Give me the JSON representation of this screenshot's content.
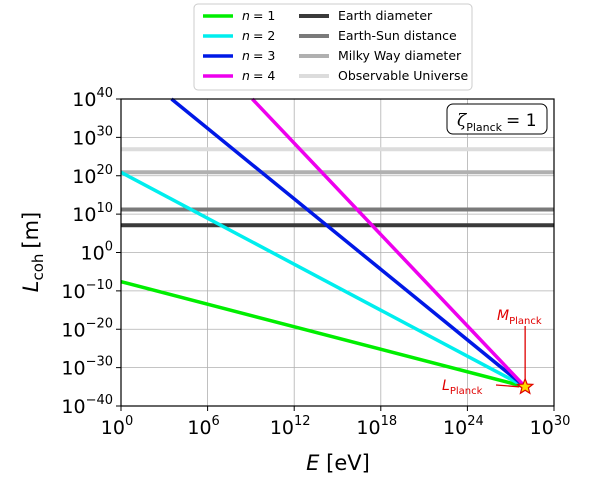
{
  "chart_data": {
    "type": "line",
    "xlabel": "E [eV]",
    "xlabel_symbol": "E",
    "xlabel_unit": "[eV]",
    "ylabel": "L_coh [m]",
    "ylabel_symbol": "L",
    "ylabel_sub": "coh",
    "ylabel_unit": "[m]",
    "x_scale": "log",
    "y_scale": "log",
    "xlim_exp": [
      0,
      30
    ],
    "ylim_exp": [
      -40,
      40
    ],
    "x_ticks": [
      {
        "base": "10",
        "exp": "0",
        "value_exp": 0
      },
      {
        "base": "10",
        "exp": "6",
        "value_exp": 6
      },
      {
        "base": "10",
        "exp": "12",
        "value_exp": 12
      },
      {
        "base": "10",
        "exp": "18",
        "value_exp": 18
      },
      {
        "base": "10",
        "exp": "24",
        "value_exp": 24
      },
      {
        "base": "10",
        "exp": "30",
        "value_exp": 30
      }
    ],
    "y_ticks": [
      {
        "base": "10",
        "exp": "40",
        "value_exp": 40
      },
      {
        "base": "10",
        "exp": "30",
        "value_exp": 30
      },
      {
        "base": "10",
        "exp": "20",
        "value_exp": 20
      },
      {
        "base": "10",
        "exp": "10",
        "value_exp": 10
      },
      {
        "base": "10",
        "exp": "0",
        "value_exp": 0
      },
      {
        "base": "10",
        "exp": "−10",
        "value_exp": -10
      },
      {
        "base": "10",
        "exp": "−20",
        "value_exp": -20
      },
      {
        "base": "10",
        "exp": "−30",
        "value_exp": -30
      },
      {
        "base": "10",
        "exp": "−40",
        "value_exp": -40
      }
    ],
    "grid": true,
    "legend_placement": "top-outside",
    "series": [
      {
        "name": "n = 1",
        "n_label": "n",
        "n_value": "= 1",
        "color": "#00ee00",
        "x_exp": [
          0,
          28
        ],
        "y_exp": [
          -7.6,
          -35
        ]
      },
      {
        "name": "n = 2",
        "n_label": "n",
        "n_value": "= 2",
        "color": "#00eeee",
        "x_exp": [
          0,
          28
        ],
        "y_exp": [
          20.9,
          -35
        ]
      },
      {
        "name": "n = 3",
        "n_label": "n",
        "n_value": "= 3",
        "color": "#0018e6",
        "x_exp": [
          3.5,
          28
        ],
        "y_exp": [
          40,
          -35
        ]
      },
      {
        "name": "n = 4",
        "n_label": "n",
        "n_value": "= 4",
        "color": "#ee00ee",
        "x_exp": [
          9.1,
          28
        ],
        "y_exp": [
          40,
          -35
        ]
      }
    ],
    "reference_lines": [
      {
        "name": "Earth diameter",
        "color": "#3a3a3a",
        "y_exp": 7.1
      },
      {
        "name": "Earth-Sun distance",
        "color": "#7a7a7a",
        "y_exp": 11.2
      },
      {
        "name": "Milky Way diameter",
        "color": "#b0b0b0",
        "y_exp": 20.9
      },
      {
        "name": "Observable Universe",
        "color": "#dcdcdc",
        "y_exp": 26.9
      }
    ],
    "annotations": {
      "zeta_box": {
        "symbol": "ζ",
        "sub": "Planck",
        "value": "= 1",
        "placement": "top-right"
      },
      "planck_point": {
        "x_exp": 28,
        "y_exp": -35,
        "marker": "star",
        "fill": "#ffd700",
        "edge": "#e00000"
      },
      "m_planck": {
        "symbol": "M",
        "sub": "Planck",
        "color": "#e00000"
      },
      "l_planck": {
        "symbol": "L",
        "sub": "Planck",
        "color": "#e00000"
      }
    }
  }
}
